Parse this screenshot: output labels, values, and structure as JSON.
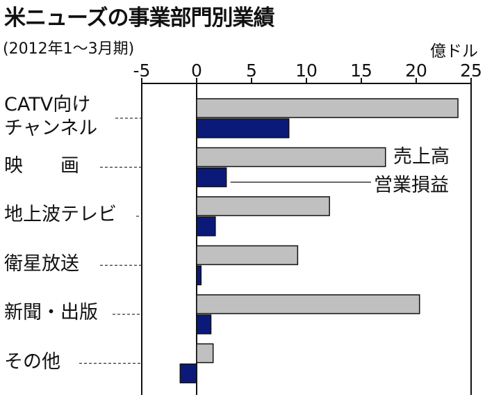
{
  "chart_data": {
    "type": "bar",
    "orientation": "horizontal",
    "title": "米ニューズの事業部門別業績",
    "subtitle": "(2012年1〜3月期)",
    "unit": "億ドル",
    "xlim": [
      -5,
      25
    ],
    "ticks": [
      -5,
      0,
      5,
      10,
      15,
      20,
      25
    ],
    "categories": [
      "CATV向け\nチャンネル",
      "映　　画",
      "地上波テレビ",
      "衛星放送",
      "新聞・出版",
      "その他"
    ],
    "series": [
      {
        "name": "売上高",
        "color": "#c0c0c0",
        "values": [
          23.8,
          17.2,
          12.1,
          9.2,
          20.3,
          1.5
        ]
      },
      {
        "name": "営業損益",
        "color": "#0b1a78",
        "values": [
          8.4,
          2.7,
          1.7,
          0.4,
          1.3,
          -1.5
        ]
      }
    ]
  }
}
